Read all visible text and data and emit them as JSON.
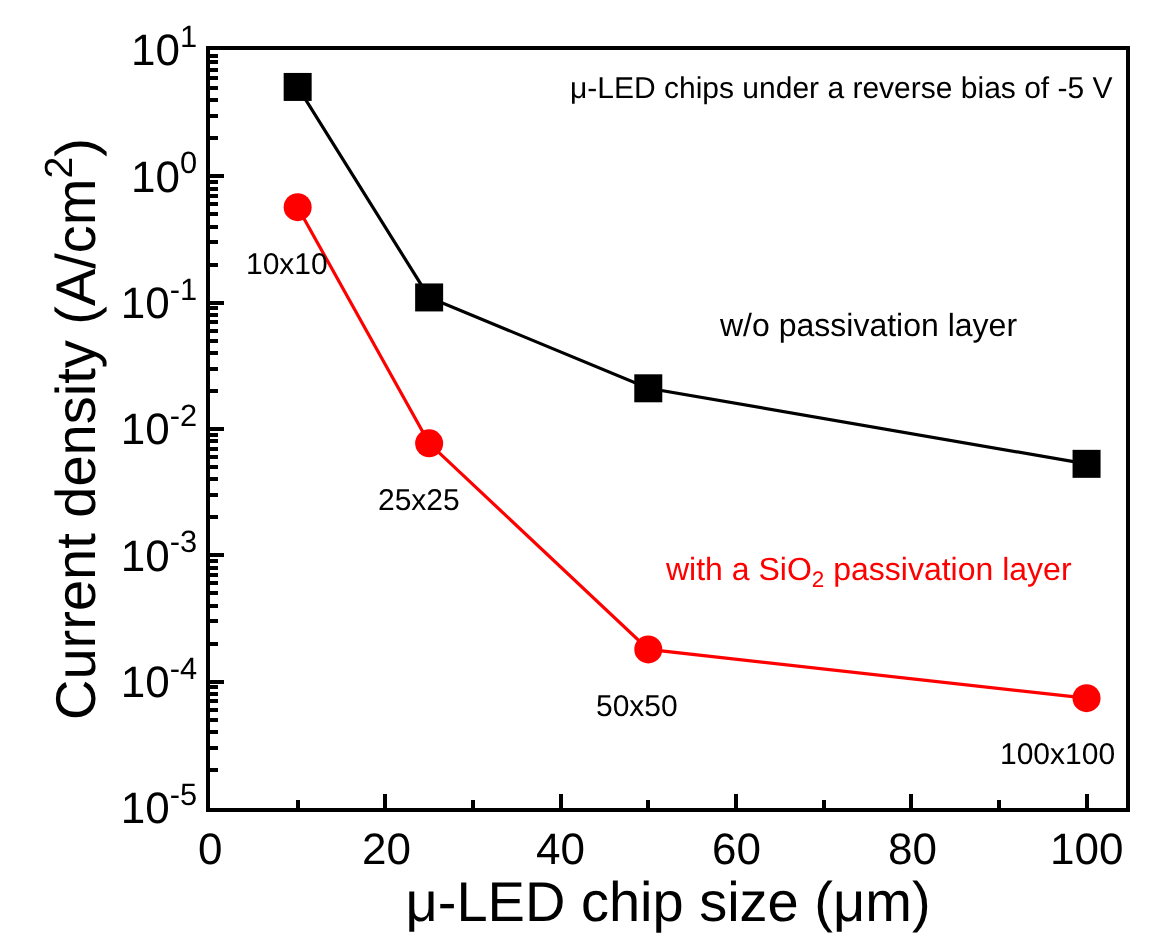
{
  "chart_data": {
    "type": "line",
    "xlabel": "μ-LED chip size (μm)",
    "ylabel": "Current density (A/cm$^{2}$)",
    "x": [
      10,
      25,
      50,
      100
    ],
    "series": [
      {
        "name": "w/o passivation layer",
        "color": "#000000",
        "marker": "square",
        "values": [
          5.1,
          0.11,
          0.021,
          0.0053
        ]
      },
      {
        "name": "with a SiO$_{2}$ passivation layer",
        "color": "#ff0000",
        "marker": "circle",
        "values": [
          0.57,
          0.0077,
          0.00018,
          7.4e-05
        ]
      }
    ],
    "annotations": [
      "μ-LED chips under a reverse bias of -5 V",
      {
        "text": "10x10",
        "x": 10,
        "y": 0.57
      },
      {
        "text": "25x25",
        "x": 25,
        "y": 0.0077
      },
      {
        "text": "50x50",
        "x": 50,
        "y": 0.00018
      },
      {
        "text": "100x100",
        "x": 100,
        "y": 7.4e-05
      }
    ],
    "log": "y",
    "xlim": [
      0,
      104.5
    ],
    "ylim": [
      1e-05,
      10
    ],
    "xticks": [
      0,
      20,
      40,
      60,
      80,
      100
    ],
    "yticks": [
      {
        "value": 1e-05,
        "label": "10$^{-5}$"
      },
      {
        "value": 0.0001,
        "label": "10$^{-4}$"
      },
      {
        "value": 0.001,
        "label": "10$^{-3}$"
      },
      {
        "value": 0.01,
        "label": "10$^{-2}$"
      },
      {
        "value": 0.1,
        "label": "10$^{-1}$"
      },
      {
        "value": 1,
        "label": "10$^{0}$"
      },
      {
        "value": 10,
        "label": "10$^{1}$"
      }
    ],
    "grid": false,
    "legend": false,
    "line_style": "solid"
  }
}
